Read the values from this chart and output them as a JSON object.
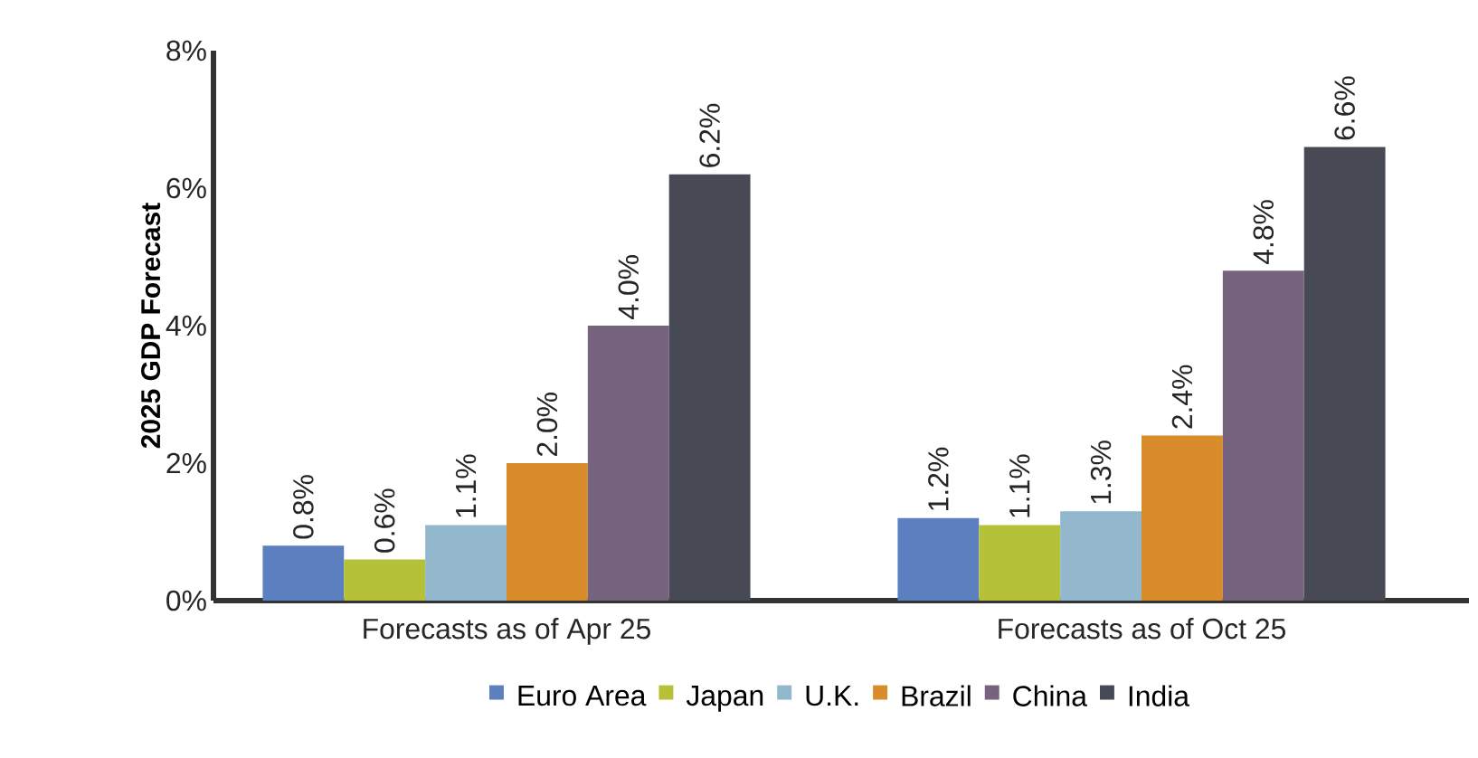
{
  "chart_data": {
    "type": "bar",
    "ylabel": "2025 GDP Forecast",
    "categories": [
      "Forecasts as of Apr 25",
      "Forecasts as of Oct 25"
    ],
    "series": [
      {
        "name": "Euro Area",
        "color": "#5b7fbf",
        "values": [
          0.8,
          1.2
        ],
        "value_labels": [
          "0.8%",
          "1.2%"
        ]
      },
      {
        "name": "Japan",
        "color": "#b5c239",
        "values": [
          0.6,
          1.1
        ],
        "value_labels": [
          "0.6%",
          "1.1%"
        ]
      },
      {
        "name": "U.K.",
        "color": "#93b7cc",
        "values": [
          1.1,
          1.3
        ],
        "value_labels": [
          "1.1%",
          "1.3%"
        ]
      },
      {
        "name": "Brazil",
        "color": "#d98c2a",
        "values": [
          2.0,
          2.4
        ],
        "value_labels": [
          "2.0%",
          "2.4%"
        ]
      },
      {
        "name": "China",
        "color": "#76647e",
        "values": [
          4.0,
          4.8
        ],
        "value_labels": [
          "4.0%",
          "4.8%"
        ]
      },
      {
        "name": "India",
        "color": "#474a55",
        "values": [
          6.2,
          6.6
        ],
        "value_labels": [
          "6.2%",
          "6.6%"
        ]
      }
    ],
    "ylim": [
      0,
      8
    ],
    "yticks": [
      {
        "value": 0,
        "label": "0%"
      },
      {
        "value": 2,
        "label": "2%"
      },
      {
        "value": 4,
        "label": "4%"
      },
      {
        "value": 6,
        "label": "6%"
      },
      {
        "value": 8,
        "label": "8%"
      }
    ],
    "grid": false,
    "legend": "bottom"
  }
}
